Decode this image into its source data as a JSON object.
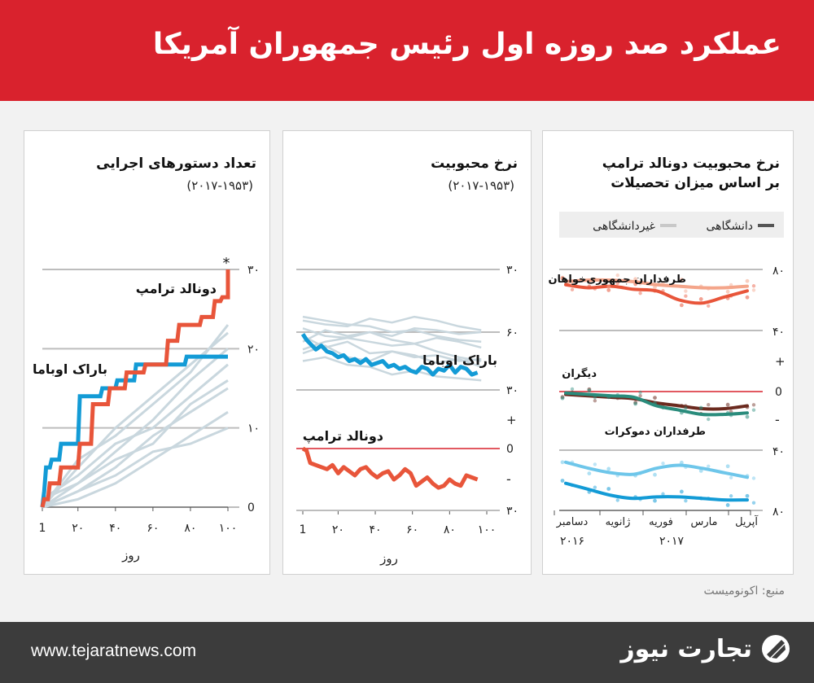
{
  "header": {
    "title": "عملکرد صد روزه اول رئیس جمهوران آمریکا"
  },
  "source": "منبع: اکونومیست",
  "footer": {
    "url": "www.tejaratnews.com",
    "logo_text": "تجارت نیوز"
  },
  "colors": {
    "red": "#e8553a",
    "blue": "#139bd6",
    "grey": "#c9d7de",
    "header": "#d9222d"
  },
  "chart_data": [
    {
      "type": "line",
      "title": "تعداد دستورهای اجرایی",
      "subtitle": "(۲۰۱۷-۱۹۵۳)",
      "xlabel": "روز",
      "x_ticks": [
        "1",
        "۲۰",
        "۴۰",
        "۶۰",
        "۸۰",
        "۱۰۰"
      ],
      "y_ticks": [
        "0",
        "۱۰",
        "۲۰",
        "۳۰"
      ],
      "xlim": [
        1,
        100
      ],
      "ylim": [
        0,
        30
      ],
      "annotation": "*",
      "series": [
        {
          "name": "دونالد ترامپ",
          "color": "#e8553a",
          "points": [
            [
              1,
              0
            ],
            [
              2,
              1
            ],
            [
              4,
              1
            ],
            [
              5,
              3
            ],
            [
              10,
              3
            ],
            [
              11,
              5
            ],
            [
              20,
              5
            ],
            [
              21,
              8
            ],
            [
              27,
              8
            ],
            [
              28,
              13
            ],
            [
              36,
              13
            ],
            [
              37,
              15
            ],
            [
              45,
              15
            ],
            [
              46,
              17
            ],
            [
              55,
              17
            ],
            [
              56,
              18
            ],
            [
              67,
              18
            ],
            [
              68,
              21
            ],
            [
              73,
              21
            ],
            [
              74,
              23
            ],
            [
              85,
              23
            ],
            [
              86,
              24
            ],
            [
              92,
              24
            ],
            [
              93,
              26
            ],
            [
              96,
              26
            ],
            [
              97,
              26.5
            ],
            [
              100,
              26.5
            ],
            [
              100,
              30
            ]
          ]
        },
        {
          "name": "باراک اوباما",
          "color": "#139bd6",
          "points": [
            [
              1,
              0
            ],
            [
              2,
              2
            ],
            [
              3,
              5
            ],
            [
              5,
              5
            ],
            [
              6,
              6
            ],
            [
              10,
              6
            ],
            [
              11,
              8
            ],
            [
              20,
              8
            ],
            [
              21,
              14
            ],
            [
              32,
              14
            ],
            [
              33,
              15
            ],
            [
              40,
              15
            ],
            [
              41,
              16
            ],
            [
              50,
              16
            ],
            [
              51,
              18
            ],
            [
              77,
              18
            ],
            [
              78,
              19
            ],
            [
              100,
              19
            ]
          ]
        },
        {
          "color": "#c9d7de",
          "points": [
            [
              1,
              0
            ],
            [
              20,
              2
            ],
            [
              40,
              5
            ],
            [
              60,
              9
            ],
            [
              80,
              12
            ],
            [
              100,
              15
            ]
          ]
        },
        {
          "color": "#c9d7de",
          "points": [
            [
              1,
              0
            ],
            [
              20,
              3
            ],
            [
              40,
              7
            ],
            [
              60,
              11
            ],
            [
              80,
              16
            ],
            [
              100,
              20
            ]
          ]
        },
        {
          "color": "#c9d7de",
          "points": [
            [
              1,
              1
            ],
            [
              20,
              4
            ],
            [
              40,
              8
            ],
            [
              60,
              10
            ],
            [
              80,
              14
            ],
            [
              100,
              18
            ]
          ]
        },
        {
          "color": "#c9d7de",
          "points": [
            [
              1,
              0
            ],
            [
              20,
              1
            ],
            [
              40,
              3
            ],
            [
              60,
              6
            ],
            [
              80,
              9
            ],
            [
              100,
              12
            ]
          ]
        },
        {
          "color": "#c9d7de",
          "points": [
            [
              1,
              0
            ],
            [
              20,
              5
            ],
            [
              40,
              10
            ],
            [
              60,
              14
            ],
            [
              80,
              18
            ],
            [
              100,
              22
            ]
          ]
        },
        {
          "color": "#c9d7de",
          "points": [
            [
              1,
              0
            ],
            [
              20,
              2
            ],
            [
              40,
              4
            ],
            [
              60,
              7
            ],
            [
              80,
              8
            ],
            [
              100,
              10
            ]
          ]
        },
        {
          "color": "#c9d7de",
          "points": [
            [
              1,
              0
            ],
            [
              20,
              6
            ],
            [
              40,
              9
            ],
            [
              60,
              13
            ],
            [
              80,
              17
            ],
            [
              100,
              23
            ]
          ]
        },
        {
          "color": "#c9d7de",
          "points": [
            [
              1,
              1
            ],
            [
              20,
              3
            ],
            [
              40,
              6
            ],
            [
              60,
              8
            ],
            [
              80,
              13
            ],
            [
              100,
              16
            ]
          ]
        }
      ]
    },
    {
      "type": "line",
      "title": "نرخ محبوبیت",
      "subtitle": "(۲۰۱۷-۱۹۵۳)",
      "xlabel": "روز",
      "x_ticks": [
        "1",
        "۲۰",
        "۴۰",
        "۶۰",
        "۸۰",
        "۱۰۰"
      ],
      "top_y_ticks": [
        "۳۰",
        "۶۰",
        "۳۰"
      ],
      "bottom_y_ticks": [
        "+",
        "0",
        "-",
        "۳۰"
      ],
      "series": [
        {
          "name": "باراک اوباما",
          "color": "#139bd6",
          "x": [
            1,
            3,
            5,
            8,
            11,
            14,
            17,
            20,
            23,
            26,
            29,
            32,
            35,
            38,
            41,
            44,
            47,
            50,
            53,
            56,
            59,
            62,
            65,
            68,
            71,
            74,
            77,
            80,
            83,
            86,
            89,
            92,
            95
          ],
          "y": [
            59,
            56,
            54,
            51,
            53,
            50,
            49,
            47,
            48,
            45,
            46,
            44,
            46,
            43,
            44,
            45,
            42,
            43,
            41,
            42,
            40,
            39,
            42,
            41,
            38,
            41,
            40,
            43,
            39,
            42,
            41,
            38,
            39
          ]
        },
        {
          "name": "دونالد ترامپ",
          "color": "#e8553a",
          "x": [
            1,
            3,
            5,
            8,
            11,
            14,
            17,
            20,
            23,
            26,
            29,
            32,
            35,
            38,
            41,
            44,
            47,
            50,
            53,
            56,
            59,
            62,
            65,
            68,
            71,
            74,
            77,
            80,
            83,
            86,
            89,
            92,
            95
          ],
          "y": [
            0,
            -1,
            -7,
            -8,
            -9,
            -10,
            -8,
            -12,
            -9,
            -11,
            -13,
            -10,
            -9,
            -12,
            -14,
            -12,
            -11,
            -15,
            -13,
            -10,
            -12,
            -18,
            -16,
            -14,
            -17,
            -19,
            -18,
            -15,
            -17,
            -18,
            -13,
            -14,
            -15
          ]
        }
      ]
    },
    {
      "type": "line",
      "title": "نرخ محبوبیت دونالد ترامپ",
      "subtitle": "بر اساس میزان تحصیلات",
      "legend": [
        "دانشگاهی",
        "غیردانشگاهی"
      ],
      "x_ticks": [
        "دسامبر",
        "ژانویه",
        "فوریه",
        "مارس",
        "آپریل"
      ],
      "year_labels": [
        "۲۰۱۶",
        "۲۰۱۷"
      ],
      "y_ticks": [
        "۸۰",
        "۴۰",
        "+",
        "0",
        "-",
        "۴۰",
        "۸۰"
      ],
      "groups": [
        {
          "name": "طرفداران جمهوری‌خواهان",
          "series": [
            {
              "name": "دانشگاهی",
              "color": "#e8553a",
              "y": [
                70,
                68,
                69,
                67,
                66,
                60,
                58,
                62,
                66
              ]
            },
            {
              "name": "غیردانشگاهی",
              "color": "#f4a58a",
              "y": [
                72,
                73,
                73,
                72,
                70,
                69,
                68,
                68,
                69
              ]
            }
          ]
        },
        {
          "name": "دیگران",
          "series": [
            {
              "name": "دانشگاهی",
              "color": "#6b2a1f",
              "y": [
                -2,
                -3,
                -4,
                -5,
                -8,
                -10,
                -12,
                -12,
                -10
              ]
            },
            {
              "name": "غیردانشگاهی",
              "color": "#2a8c7c",
              "y": [
                -1,
                -2,
                -3,
                -4,
                -10,
                -13,
                -16,
                -16,
                -15
              ]
            }
          ]
        },
        {
          "name": "طرفداران دموکرات",
          "series": [
            {
              "name": "دانشگاهی",
              "color": "#139bd6",
              "y": [
                -62,
                -66,
                -70,
                -72,
                -71,
                -71,
                -72,
                -73,
                -73
              ]
            },
            {
              "name": "غیردانشگاهی",
              "color": "#6ec6ea",
              "y": [
                -48,
                -52,
                -55,
                -56,
                -52,
                -50,
                -52,
                -55,
                -58
              ]
            }
          ]
        }
      ]
    }
  ]
}
